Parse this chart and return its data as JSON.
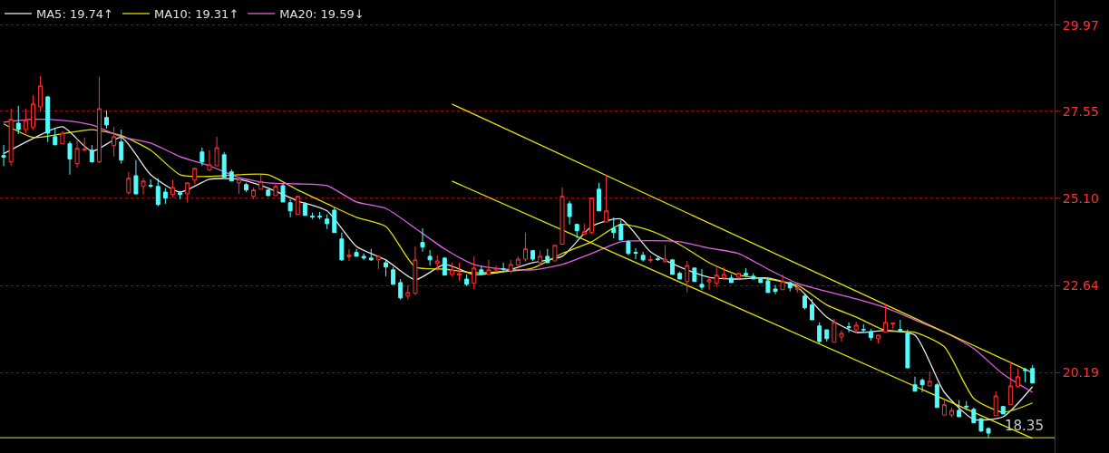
{
  "chart_data": {
    "type": "candlestick",
    "categories": [
      null,
      null,
      null,
      null,
      null,
      null,
      null,
      null,
      null,
      null,
      null,
      null,
      null,
      null,
      null,
      null,
      null,
      null,
      null,
      null,
      null,
      null,
      null,
      null,
      null,
      null,
      null,
      null,
      null,
      null,
      null,
      null,
      null,
      null,
      null,
      null,
      null,
      null,
      null,
      null,
      null,
      null,
      null,
      null,
      null,
      null,
      null,
      null,
      null,
      null,
      null,
      null,
      null,
      null,
      null,
      null,
      null,
      null,
      null,
      null,
      null,
      null,
      null,
      null,
      null,
      null,
      null,
      null,
      null,
      null,
      null,
      null,
      null,
      null,
      null,
      null,
      null,
      null,
      null,
      null,
      null,
      null,
      null,
      null,
      null,
      null,
      null,
      null,
      null,
      null,
      null,
      null,
      null,
      null,
      null,
      null,
      null,
      null,
      null,
      null,
      null,
      null,
      null,
      null,
      null,
      null,
      null,
      null,
      null,
      null,
      null,
      null,
      null,
      null,
      null,
      null,
      null,
      null,
      null,
      null,
      null,
      null,
      null,
      null,
      null,
      null,
      null,
      null,
      null,
      null,
      null,
      null,
      null,
      null,
      null,
      null,
      null,
      null,
      null,
      null,
      null
    ],
    "ohlc": [
      [
        26.3,
        26.6,
        26.0,
        26.25
      ],
      [
        26.12,
        27.62,
        26.01,
        27.32
      ],
      [
        27.21,
        27.7,
        26.9,
        27.03
      ],
      [
        27.03,
        27.62,
        26.93,
        27.29
      ],
      [
        27.1,
        28.0,
        27.03,
        27.75
      ],
      [
        27.67,
        28.54,
        27.55,
        28.26
      ],
      [
        27.95,
        27.98,
        26.68,
        26.93
      ],
      [
        26.83,
        27.06,
        26.6,
        26.6
      ],
      [
        26.63,
        26.98,
        26.63,
        26.93
      ],
      [
        26.63,
        26.7,
        25.76,
        26.2
      ],
      [
        26.07,
        26.78,
        25.96,
        26.5
      ],
      [
        26.45,
        26.81,
        26.42,
        26.48
      ],
      [
        26.45,
        26.6,
        26.1,
        26.12
      ],
      [
        26.12,
        28.52,
        26.09,
        27.62
      ],
      [
        27.37,
        27.57,
        27.06,
        27.16
      ],
      [
        26.58,
        27.11,
        26.27,
        26.83
      ],
      [
        26.68,
        27.03,
        26.07,
        26.17
      ],
      [
        25.25,
        25.84,
        25.2,
        25.66
      ],
      [
        25.73,
        26.17,
        25.2,
        25.22
      ],
      [
        25.43,
        25.66,
        25.2,
        25.58
      ],
      [
        25.46,
        25.63,
        25.38,
        25.44
      ],
      [
        25.43,
        25.66,
        24.87,
        24.92
      ],
      [
        25.27,
        25.38,
        24.94,
        25.1
      ],
      [
        25.2,
        25.61,
        25.12,
        25.4
      ],
      [
        25.25,
        25.3,
        25.07,
        25.2
      ],
      [
        25.22,
        25.53,
        24.99,
        25.53
      ],
      [
        25.61,
        25.94,
        25.5,
        25.94
      ],
      [
        26.4,
        26.52,
        26.01,
        26.12
      ],
      [
        25.89,
        26.45,
        25.86,
        26.04
      ],
      [
        26.01,
        26.83,
        26.01,
        26.52
      ],
      [
        26.32,
        26.4,
        25.68,
        25.68
      ],
      [
        25.84,
        25.91,
        25.58,
        25.58
      ],
      [
        25.53,
        25.66,
        25.22,
        25.63
      ],
      [
        25.48,
        25.53,
        25.27,
        25.33
      ],
      [
        25.15,
        25.4,
        25.07,
        25.33
      ],
      [
        25.35,
        25.76,
        25.35,
        25.56
      ],
      [
        25.33,
        25.35,
        25.15,
        25.17
      ],
      [
        25.17,
        25.53,
        25.17,
        25.43
      ],
      [
        25.45,
        25.5,
        24.99,
        24.99
      ],
      [
        24.97,
        25.07,
        24.56,
        24.74
      ],
      [
        24.64,
        25.15,
        24.64,
        25.15
      ],
      [
        24.94,
        24.99,
        24.61,
        24.61
      ],
      [
        24.59,
        24.69,
        24.51,
        24.57
      ],
      [
        24.59,
        24.71,
        24.5,
        24.57
      ],
      [
        24.51,
        24.64,
        24.23,
        24.38
      ],
      [
        24.76,
        24.84,
        24.13,
        24.13
      ],
      [
        23.95,
        24.13,
        23.33,
        23.36
      ],
      [
        23.45,
        23.67,
        23.33,
        23.5
      ],
      [
        23.57,
        23.67,
        23.46,
        23.46
      ],
      [
        23.46,
        23.54,
        23.36,
        23.41
      ],
      [
        23.41,
        23.67,
        23.33,
        23.36
      ],
      [
        23.36,
        23.46,
        23.1,
        23.46
      ],
      [
        23.28,
        23.38,
        22.9,
        23.16
      ],
      [
        23.08,
        23.16,
        22.67,
        22.67
      ],
      [
        22.72,
        22.82,
        22.24,
        22.29
      ],
      [
        22.34,
        22.65,
        22.24,
        22.44
      ],
      [
        22.42,
        23.74,
        22.37,
        23.36
      ],
      [
        23.85,
        24.25,
        23.59,
        23.72
      ],
      [
        23.46,
        23.64,
        23.2,
        23.36
      ],
      [
        23.26,
        23.49,
        23.05,
        23.33
      ],
      [
        23.41,
        23.44,
        22.93,
        22.93
      ],
      [
        22.95,
        23.28,
        22.9,
        23.08
      ],
      [
        22.93,
        23.28,
        22.77,
        22.97
      ],
      [
        22.82,
        22.95,
        22.62,
        22.67
      ],
      [
        22.7,
        23.46,
        22.54,
        23.13
      ],
      [
        23.08,
        23.2,
        22.93,
        22.95
      ],
      [
        22.95,
        23.36,
        22.93,
        23.08
      ],
      [
        23.08,
        23.2,
        23.0,
        23.11
      ],
      [
        23.11,
        23.28,
        23.05,
        23.09
      ],
      [
        23.05,
        23.36,
        22.98,
        23.23
      ],
      [
        23.21,
        23.46,
        23.2,
        23.38
      ],
      [
        23.38,
        24.13,
        23.31,
        23.67
      ],
      [
        23.62,
        23.64,
        23.33,
        23.38
      ],
      [
        23.28,
        23.62,
        23.2,
        23.46
      ],
      [
        23.46,
        23.67,
        23.28,
        23.28
      ],
      [
        23.33,
        23.77,
        23.33,
        23.77
      ],
      [
        23.8,
        25.4,
        23.8,
        25.15
      ],
      [
        24.94,
        25.02,
        24.36,
        24.58
      ],
      [
        24.36,
        24.38,
        23.97,
        24.18
      ],
      [
        24.08,
        24.38,
        24.08,
        24.15
      ],
      [
        24.13,
        25.1,
        24.08,
        25.1
      ],
      [
        25.35,
        25.53,
        24.74,
        24.74
      ],
      [
        24.43,
        25.76,
        24.43,
        24.74
      ],
      [
        24.25,
        24.56,
        23.97,
        24.13
      ],
      [
        24.36,
        24.48,
        23.92,
        23.92
      ],
      [
        23.87,
        23.92,
        23.49,
        23.54
      ],
      [
        23.57,
        23.69,
        23.38,
        23.55
      ],
      [
        23.49,
        23.59,
        23.31,
        23.36
      ],
      [
        23.34,
        23.49,
        23.28,
        23.37
      ],
      [
        23.39,
        23.46,
        23.33,
        23.37
      ],
      [
        23.31,
        23.77,
        23.28,
        23.38
      ],
      [
        23.36,
        23.38,
        22.95,
        22.95
      ],
      [
        22.98,
        23.03,
        22.82,
        22.82
      ],
      [
        22.75,
        23.33,
        22.44,
        23.2
      ],
      [
        23.13,
        23.13,
        22.75,
        22.75
      ],
      [
        22.67,
        23.1,
        22.52,
        22.59
      ],
      [
        22.74,
        22.87,
        22.52,
        22.8
      ],
      [
        22.7,
        23.16,
        22.59,
        22.93
      ],
      [
        22.85,
        23.16,
        22.82,
        22.95
      ],
      [
        22.85,
        22.95,
        22.72,
        22.72
      ],
      [
        22.87,
        22.98,
        22.82,
        22.98
      ],
      [
        22.98,
        23.13,
        22.87,
        22.93
      ],
      [
        22.9,
        22.98,
        22.82,
        22.82
      ],
      [
        22.85,
        22.87,
        22.72,
        22.72
      ],
      [
        22.77,
        22.87,
        22.44,
        22.44
      ],
      [
        22.54,
        22.65,
        22.39,
        22.47
      ],
      [
        22.52,
        22.95,
        22.52,
        22.75
      ],
      [
        22.72,
        22.75,
        22.47,
        22.57
      ],
      [
        22.52,
        22.7,
        22.44,
        22.57
      ],
      [
        22.34,
        22.39,
        21.96,
        22.01
      ],
      [
        22.09,
        22.26,
        21.67,
        21.67
      ],
      [
        21.5,
        21.6,
        21.01,
        21.06
      ],
      [
        21.39,
        21.39,
        21.06,
        21.14
      ],
      [
        21.04,
        21.7,
        21.04,
        21.6
      ],
      [
        21.19,
        21.37,
        21.06,
        21.29
      ],
      [
        21.48,
        21.6,
        21.32,
        21.46
      ],
      [
        21.39,
        21.62,
        21.29,
        21.52
      ],
      [
        21.4,
        21.55,
        21.32,
        21.39
      ],
      [
        21.34,
        21.42,
        21.09,
        21.17
      ],
      [
        21.14,
        21.24,
        21.01,
        21.24
      ],
      [
        21.32,
        22.11,
        21.32,
        21.6
      ],
      [
        21.55,
        21.6,
        21.42,
        21.58
      ],
      [
        21.4,
        21.67,
        21.32,
        21.38
      ],
      [
        21.29,
        21.4,
        20.3,
        20.32
      ],
      [
        19.84,
        20.07,
        19.66,
        19.66
      ],
      [
        19.97,
        20.02,
        19.63,
        19.84
      ],
      [
        19.81,
        20.22,
        19.79,
        19.94
      ],
      [
        19.84,
        19.89,
        19.2,
        19.2
      ],
      [
        18.99,
        19.46,
        18.99,
        19.28
      ],
      [
        18.99,
        19.2,
        18.92,
        19.12
      ],
      [
        19.12,
        19.41,
        18.94,
        18.94
      ],
      [
        19.24,
        19.38,
        19.12,
        19.22
      ],
      [
        19.15,
        19.2,
        18.77,
        18.77
      ],
      [
        18.89,
        18.89,
        18.51,
        18.54
      ],
      [
        18.61,
        18.64,
        18.35,
        18.48
      ],
      [
        18.97,
        19.66,
        18.97,
        19.53
      ],
      [
        19.23,
        19.23,
        19.02,
        19.02
      ],
      [
        19.28,
        20.5,
        19.28,
        19.81
      ],
      [
        19.79,
        20.3,
        19.76,
        20.07
      ],
      [
        20.27,
        20.32,
        19.91,
        20.24
      ],
      [
        20.3,
        20.4,
        19.89,
        19.89
      ]
    ],
    "series": [
      {
        "type": "line",
        "name": "MA5: 19.74↑",
        "color": "#e8e8e8",
        "values": [
          26.35,
          null,
          null,
          null,
          26.78,
          null,
          null,
          null,
          27.11,
          null,
          null,
          null,
          26.42,
          null,
          null,
          null,
          26.81,
          null,
          null,
          null,
          25.76,
          null,
          null,
          null,
          25.27,
          null,
          null,
          null,
          25.63,
          null,
          null,
          null,
          25.63,
          null,
          null,
          null,
          25.38,
          null,
          null,
          null,
          25.02,
          null,
          null,
          null,
          24.74,
          null,
          null,
          null,
          23.74,
          null,
          null,
          null,
          23.36,
          null,
          null,
          null,
          22.8,
          null,
          null,
          null,
          23.23,
          null,
          null,
          null,
          22.95,
          null,
          null,
          null,
          23.03,
          null,
          null,
          null,
          23.28,
          null,
          null,
          null,
          23.46,
          null,
          null,
          null,
          24.3,
          null,
          null,
          null,
          24.51,
          null,
          null,
          null,
          23.59,
          null,
          null,
          null,
          23.16,
          null,
          null,
          null,
          22.87,
          null,
          null,
          null,
          22.82,
          null,
          null,
          null,
          22.85,
          null,
          null,
          null,
          22.59,
          null,
          null,
          null,
          21.75,
          null,
          null,
          null,
          21.32,
          null,
          null,
          null,
          21.37,
          null,
          null,
          null,
          21.24,
          null,
          null,
          null,
          19.63,
          null,
          null,
          null,
          18.87,
          null,
          null,
          null,
          18.94,
          null,
          null,
          null,
          19.79
        ]
      },
      {
        "type": "line",
        "name": "MA10: 19.31↑",
        "color": "#e0e000",
        "values": [
          27.19,
          null,
          null,
          null,
          26.81,
          null,
          null,
          null,
          26.91,
          null,
          null,
          null,
          27.03,
          null,
          null,
          null,
          26.86,
          null,
          null,
          null,
          26.45,
          null,
          null,
          null,
          25.76,
          null,
          null,
          null,
          25.71,
          null,
          null,
          null,
          25.76,
          null,
          null,
          null,
          25.76,
          null,
          null,
          null,
          25.33,
          null,
          null,
          null,
          24.94,
          null,
          null,
          null,
          24.56,
          null,
          null,
          null,
          24.3,
          null,
          null,
          null,
          23.16,
          null,
          null,
          null,
          23.1,
          null,
          null,
          null,
          23.0,
          null,
          null,
          null,
          23.03,
          null,
          null,
          null,
          23.13,
          null,
          null,
          null,
          23.54,
          null,
          null,
          null,
          23.87,
          null,
          null,
          null,
          24.36,
          null,
          null,
          null,
          24.18,
          null,
          null,
          null,
          23.79,
          null,
          null,
          null,
          23.28,
          null,
          null,
          null,
          22.93,
          null,
          null,
          null,
          22.82,
          null,
          null,
          null,
          22.65,
          null,
          null,
          null,
          22.09,
          null,
          null,
          null,
          21.75,
          null,
          null,
          null,
          21.37,
          null,
          null,
          null,
          21.32,
          null,
          null,
          null,
          20.91,
          null,
          null,
          null,
          19.46,
          null,
          null,
          null,
          19.07,
          null,
          null,
          null,
          19.33
        ]
      },
      {
        "type": "line",
        "name": "MA20: 19.59↓",
        "color": "#e060e0",
        "values": [
          27.24,
          null,
          null,
          null,
          27.32,
          null,
          null,
          null,
          27.29,
          null,
          null,
          null,
          27.16,
          null,
          null,
          null,
          26.83,
          null,
          null,
          null,
          26.65,
          null,
          null,
          null,
          26.27,
          null,
          null,
          null,
          26.01,
          null,
          null,
          null,
          25.68,
          null,
          null,
          null,
          25.53,
          null,
          null,
          null,
          25.5,
          null,
          null,
          null,
          25.45,
          null,
          null,
          null,
          24.99,
          null,
          null,
          null,
          24.81,
          null,
          null,
          null,
          24.25,
          null,
          null,
          null,
          23.67,
          null,
          null,
          null,
          23.23,
          null,
          null,
          null,
          23.1,
          null,
          null,
          null,
          23.08,
          null,
          null,
          null,
          23.23,
          null,
          null,
          null,
          23.54,
          null,
          null,
          null,
          23.87,
          null,
          null,
          null,
          23.9,
          null,
          null,
          null,
          23.87,
          null,
          null,
          null,
          23.69,
          null,
          null,
          null,
          23.54,
          null,
          null,
          null,
          23.1,
          null,
          null,
          null,
          22.7,
          null,
          null,
          null,
          22.47,
          null,
          null,
          null,
          22.26,
          null,
          null,
          null,
          22.01,
          null,
          null,
          null,
          21.67,
          null,
          null,
          null,
          21.32,
          null,
          null,
          null,
          20.86,
          null,
          null,
          null,
          20.14,
          null,
          null,
          null,
          19.63
        ]
      },
      {
        "type": "line",
        "color": "#e6e600",
        "values": [
          null,
          null,
          null,
          null,
          null,
          null,
          null,
          null,
          null,
          null,
          null,
          null,
          null,
          null,
          null,
          null,
          null,
          null,
          null,
          null,
          null,
          null,
          null,
          null,
          null,
          null,
          null,
          null,
          null,
          null,
          null,
          null,
          null,
          null,
          null,
          null,
          null,
          null,
          null,
          null,
          null,
          null,
          null,
          null,
          null,
          null,
          null,
          null,
          null,
          null,
          null,
          null,
          null,
          null,
          null,
          null,
          null,
          null,
          null,
          null,
          null,
          27.75,
          null,
          null,
          null,
          null,
          null,
          null,
          null,
          null,
          null,
          null,
          null,
          null,
          null,
          null,
          null,
          null,
          null,
          null,
          null,
          null,
          null,
          null,
          null,
          null,
          null,
          null,
          null,
          null,
          null,
          null,
          null,
          null,
          null,
          null,
          null,
          null,
          null,
          null,
          null,
          null,
          null,
          null,
          null,
          null,
          null,
          null,
          null,
          null,
          null,
          null,
          null,
          null,
          null,
          null,
          null,
          null,
          null,
          null,
          null,
          null,
          null,
          null,
          null,
          null,
          null,
          null,
          null,
          null,
          null,
          null,
          null,
          null,
          null,
          null,
          null,
          null,
          null,
          null,
          20.18
        ]
      },
      {
        "type": "line",
        "color": "#e6e600",
        "values": [
          null,
          null,
          null,
          null,
          null,
          null,
          null,
          null,
          null,
          null,
          null,
          null,
          null,
          null,
          null,
          null,
          null,
          null,
          null,
          null,
          null,
          null,
          null,
          null,
          null,
          null,
          null,
          null,
          null,
          null,
          null,
          null,
          null,
          null,
          null,
          null,
          null,
          null,
          null,
          null,
          null,
          null,
          null,
          null,
          null,
          null,
          null,
          null,
          null,
          null,
          null,
          null,
          null,
          null,
          null,
          null,
          null,
          null,
          null,
          null,
          null,
          25.58,
          null,
          null,
          null,
          null,
          null,
          null,
          null,
          null,
          null,
          null,
          null,
          null,
          null,
          null,
          null,
          null,
          null,
          null,
          null,
          null,
          null,
          null,
          null,
          null,
          null,
          null,
          null,
          null,
          null,
          null,
          null,
          null,
          null,
          null,
          null,
          null,
          null,
          null,
          null,
          null,
          null,
          null,
          null,
          null,
          null,
          null,
          null,
          null,
          null,
          null,
          null,
          null,
          null,
          null,
          null,
          null,
          null,
          null,
          null,
          null,
          null,
          null,
          null,
          null,
          null,
          null,
          null,
          null,
          null,
          null,
          null,
          null,
          null,
          null,
          null,
          null,
          null,
          null,
          18.33
        ]
      }
    ],
    "ref_lines": [
      {
        "axis": "y",
        "value": 18.35,
        "color": "#e6e600"
      }
    ],
    "annotations": [
      {
        "text": "18.35",
        "y": 18.35
      }
    ],
    "ylim": [
      17.92,
      30.68
    ],
    "yticks": [
      29.97,
      27.55,
      {
        "value": 25.1,
        "label": "25.10"
      },
      22.64,
      20.19
    ],
    "grid": "y",
    "legend": "top left",
    "tick_labels": "y"
  }
}
